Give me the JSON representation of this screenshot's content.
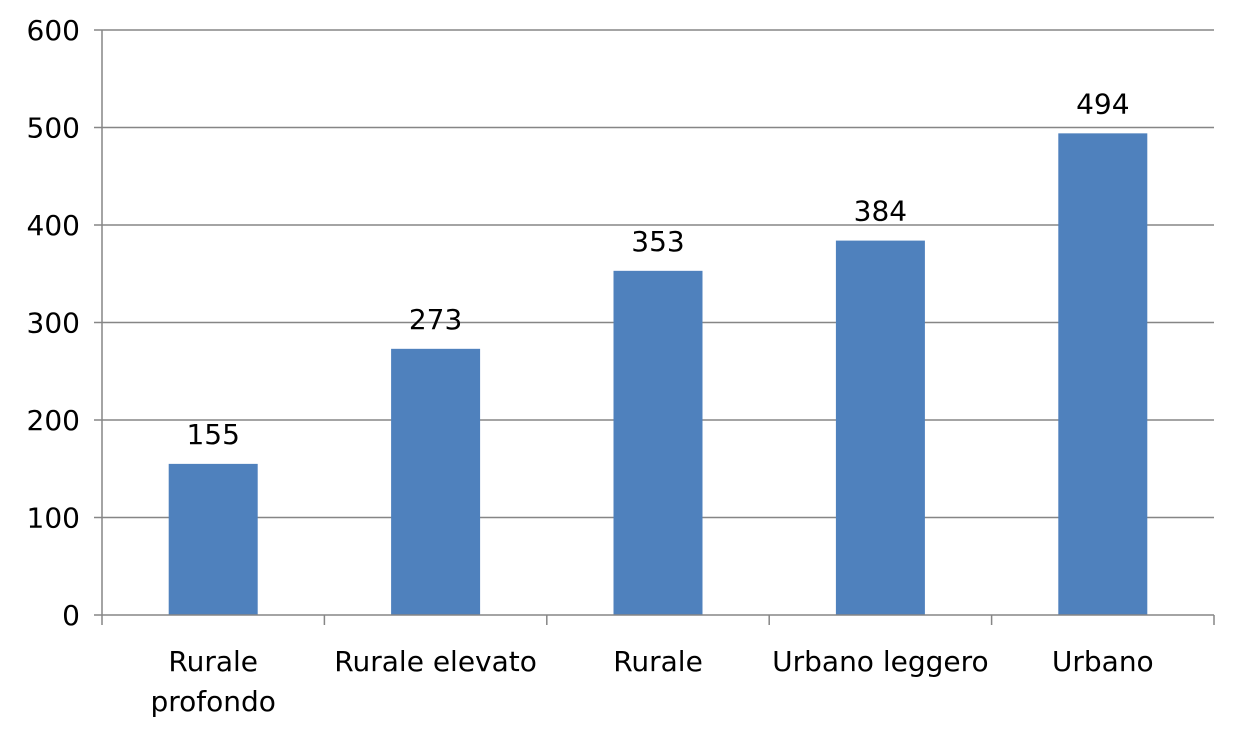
{
  "chart_data": {
    "type": "bar",
    "title": "",
    "xlabel": "",
    "ylabel": "",
    "categories": [
      [
        "Rurale",
        "profondo"
      ],
      [
        "Rurale elevato"
      ],
      [
        "Rurale"
      ],
      [
        "Urbano leggero"
      ],
      [
        "Urbano"
      ]
    ],
    "values": [
      155,
      273,
      353,
      384,
      494
    ],
    "data_labels": [
      "155",
      "273",
      "353",
      "384",
      "494"
    ],
    "ylim": [
      0,
      600
    ],
    "yticks": [
      0,
      100,
      200,
      300,
      400,
      500,
      600
    ],
    "ytick_labels": [
      "0",
      "100",
      "200",
      "300",
      "400",
      "500",
      "600"
    ],
    "grid": true,
    "legend": "none",
    "colors": {
      "bar": "#4F81BD",
      "grid": "#868686",
      "axis": "#868686",
      "text": "#000000"
    }
  }
}
